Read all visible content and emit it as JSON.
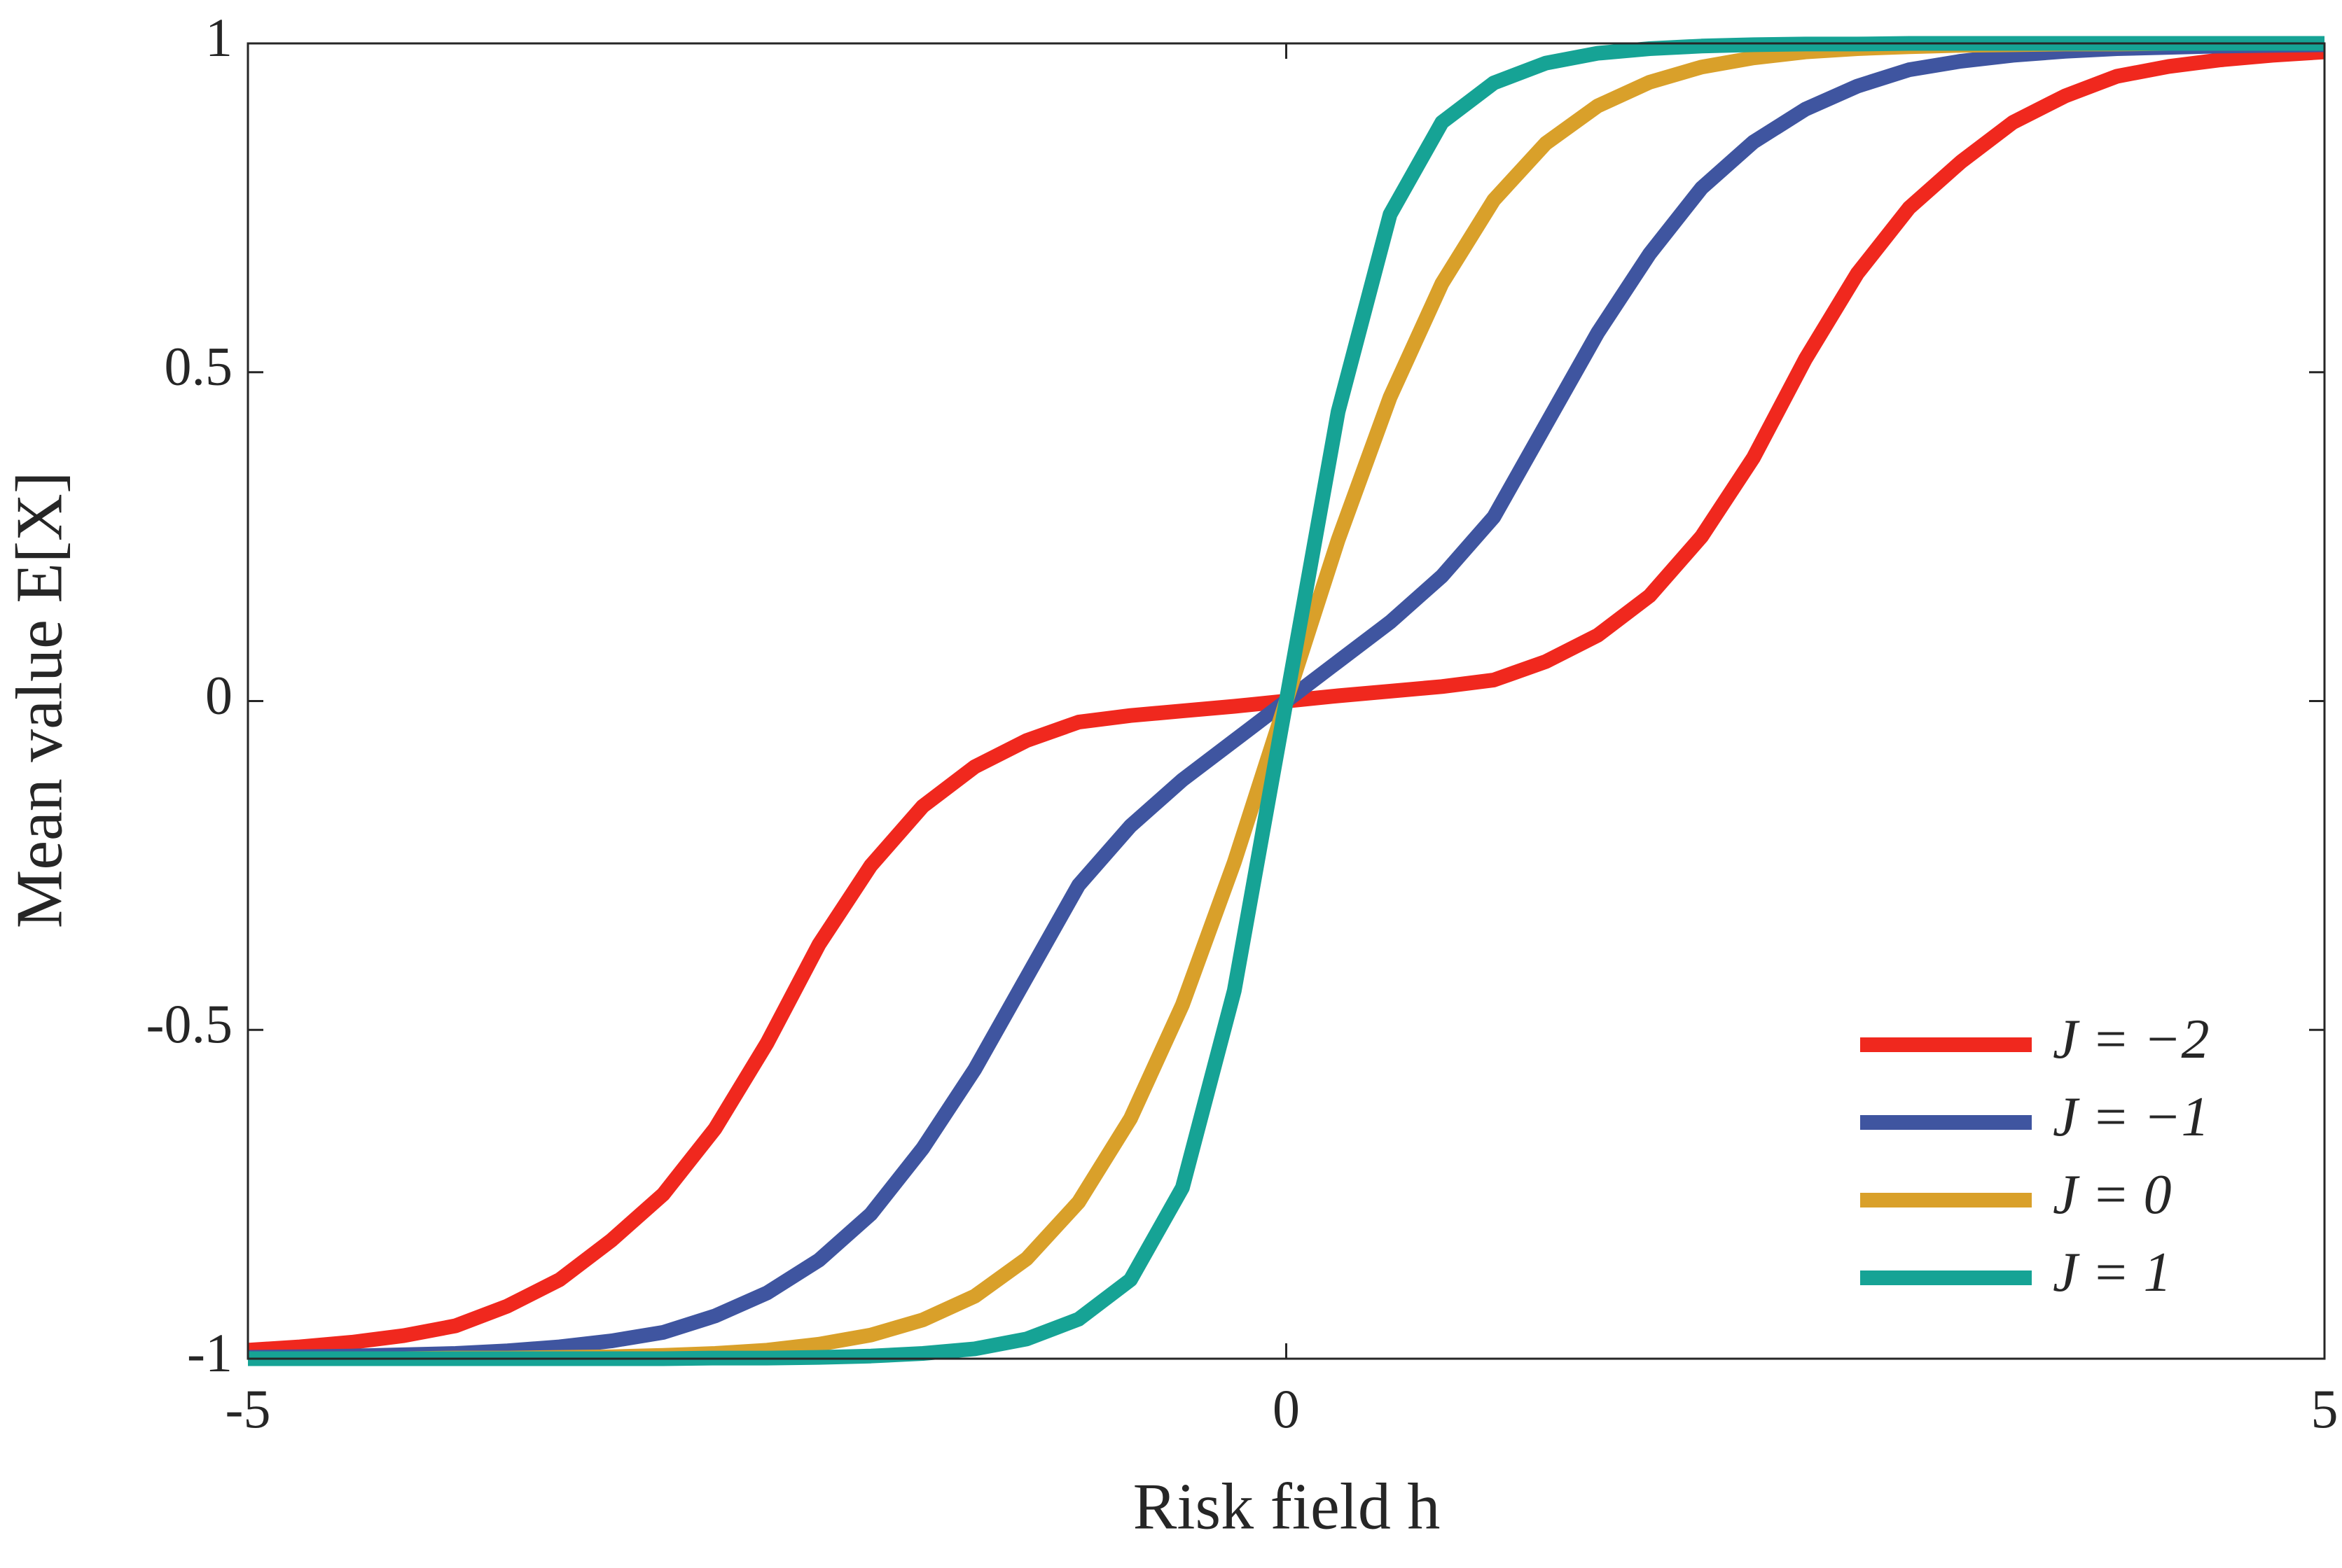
{
  "chart_data": {
    "type": "line",
    "x_label": "Risk field h",
    "y_label": "Mean value E[X]",
    "x": [
      -5,
      -4.75,
      -4.5,
      -4.25,
      -4,
      -3.75,
      -3.5,
      -3.25,
      -3,
      -2.75,
      -2.5,
      -2.25,
      -2,
      -1.75,
      -1.5,
      -1.25,
      -1,
      -0.75,
      -0.5,
      -0.25,
      0,
      0.25,
      0.5,
      0.75,
      1,
      1.25,
      1.5,
      1.75,
      2,
      2.25,
      2.5,
      2.75,
      3,
      3.25,
      3.5,
      3.75,
      4,
      4.25,
      4.5,
      4.75,
      5
    ],
    "series": [
      {
        "name": "J = −2",
        "color": "#f0281e",
        "values": [
          -0.987,
          -0.982,
          -0.975,
          -0.965,
          -0.95,
          -0.92,
          -0.88,
          -0.82,
          -0.75,
          -0.65,
          -0.52,
          -0.37,
          -0.25,
          -0.16,
          -0.1,
          -0.06,
          -0.032,
          -0.022,
          -0.015,
          -0.008,
          0,
          0.008,
          0.015,
          0.022,
          0.032,
          0.06,
          0.1,
          0.16,
          0.25,
          0.37,
          0.52,
          0.65,
          0.75,
          0.82,
          0.88,
          0.92,
          0.95,
          0.965,
          0.975,
          0.982,
          0.987
        ]
      },
      {
        "name": "J = −1",
        "color": "#3f55a0",
        "values": [
          -0.998,
          -0.997,
          -0.996,
          -0.994,
          -0.992,
          -0.988,
          -0.982,
          -0.973,
          -0.96,
          -0.935,
          -0.9,
          -0.85,
          -0.78,
          -0.68,
          -0.56,
          -0.42,
          -0.28,
          -0.19,
          -0.12,
          -0.06,
          0,
          0.06,
          0.12,
          0.19,
          0.28,
          0.42,
          0.56,
          0.68,
          0.78,
          0.85,
          0.9,
          0.935,
          0.96,
          0.973,
          0.982,
          0.988,
          0.992,
          0.994,
          0.996,
          0.997,
          0.998
        ]
      },
      {
        "name": "J = 0",
        "color": "#d9a02a",
        "values": [
          -1,
          -1,
          -1,
          -1,
          -0.999,
          -0.999,
          -0.998,
          -0.997,
          -0.995,
          -0.992,
          -0.987,
          -0.978,
          -0.964,
          -0.941,
          -0.905,
          -0.848,
          -0.762,
          -0.635,
          -0.462,
          -0.245,
          0,
          0.245,
          0.462,
          0.635,
          0.762,
          0.848,
          0.905,
          0.941,
          0.964,
          0.978,
          0.987,
          0.992,
          0.995,
          0.997,
          0.998,
          0.999,
          0.999,
          1,
          1,
          1,
          1
        ]
      },
      {
        "name": "J = 1",
        "color": "#16a395",
        "values": [
          -1,
          -1,
          -1,
          -1,
          -1,
          -1,
          -1,
          -1,
          -1,
          -0.999,
          -0.999,
          -0.998,
          -0.996,
          -0.992,
          -0.985,
          -0.97,
          -0.94,
          -0.88,
          -0.74,
          -0.44,
          0,
          0.44,
          0.74,
          0.88,
          0.94,
          0.97,
          0.985,
          0.992,
          0.996,
          0.998,
          0.999,
          0.999,
          1,
          1,
          1,
          1,
          1,
          1,
          1,
          1,
          1
        ]
      }
    ],
    "xlim": [
      -5,
      5
    ],
    "ylim": [
      -1,
      1
    ],
    "xticks": [
      -5,
      0,
      5
    ],
    "yticks": [
      -1,
      -0.5,
      0,
      0.5,
      1
    ],
    "legend": "lower right"
  }
}
